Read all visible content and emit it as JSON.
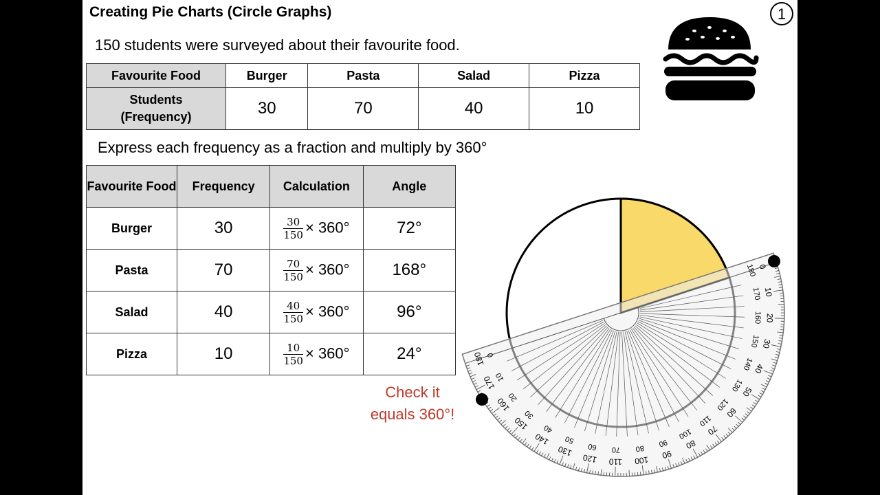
{
  "header": {
    "title": "Creating Pie Charts (Circle Graphs)",
    "page_number": "1"
  },
  "intro": "150 students were surveyed about their favourite food.",
  "frequency_table": {
    "headers": [
      "Favourite Food",
      "Burger",
      "Pasta",
      "Salad",
      "Pizza"
    ],
    "row_label": [
      "Students",
      "(Frequency)"
    ],
    "values": [
      "30",
      "70",
      "40",
      "10"
    ]
  },
  "instruction": "Express each frequency as a fraction and multiply by 360°",
  "angle_table": {
    "headers": [
      "Favourite Food",
      "Frequency",
      "Calculation",
      "Angle"
    ],
    "rows": [
      {
        "food": "Burger",
        "frequency": "30",
        "numerator": "30",
        "denominator": "150",
        "multiplier": "× 360°",
        "angle": "72°"
      },
      {
        "food": "Pasta",
        "frequency": "70",
        "numerator": "70",
        "denominator": "150",
        "multiplier": "× 360°",
        "angle": "168°"
      },
      {
        "food": "Salad",
        "frequency": "40",
        "numerator": "40",
        "denominator": "150",
        "multiplier": "× 360°",
        "angle": "96°"
      },
      {
        "food": "Pizza",
        "frequency": "10",
        "numerator": "10",
        "denominator": "150",
        "multiplier": "× 360°",
        "angle": "24°"
      }
    ]
  },
  "note": [
    "Check it",
    "equals 360°!"
  ],
  "protractor": {
    "outer_labels": [
      0,
      10,
      20,
      30,
      40,
      50,
      60,
      70,
      80,
      90,
      100,
      110,
      120,
      130,
      140,
      150,
      160,
      170,
      180
    ],
    "inner_labels": [
      180,
      170,
      160,
      150,
      140,
      130,
      120,
      110,
      100,
      90,
      80,
      70,
      60,
      50,
      40,
      30,
      20,
      10,
      0
    ]
  }
}
